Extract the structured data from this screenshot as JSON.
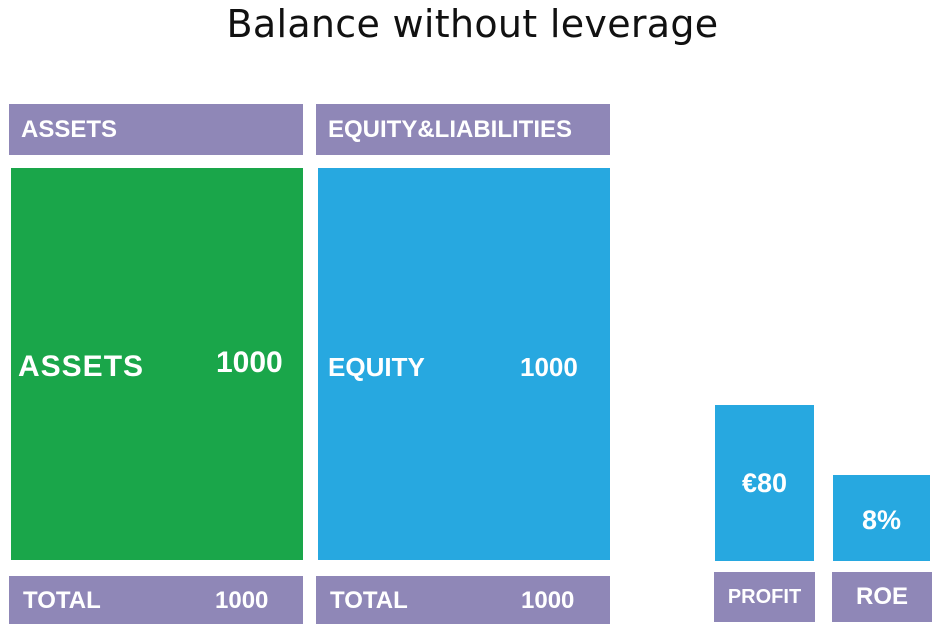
{
  "title": "Balance without leverage",
  "assets_column": {
    "header": "ASSETS",
    "block_label": "ASSETS",
    "block_value": "1000",
    "total_label": "TOTAL",
    "total_value": "1000",
    "color": "#1aa64a"
  },
  "liabilities_column": {
    "header": "EQUITY&LIABILITIES",
    "block_label": "EQUITY",
    "block_value": "1000",
    "total_label": "TOTAL",
    "total_value": "1000",
    "color": "#27a8e0"
  },
  "profit": {
    "value": "€80",
    "label": "PROFIT"
  },
  "roe": {
    "value": "8%",
    "label": "ROE"
  },
  "colors": {
    "header": "#8f87b7",
    "assets": "#1aa64a",
    "equity": "#27a8e0",
    "text": "#ffffff"
  }
}
